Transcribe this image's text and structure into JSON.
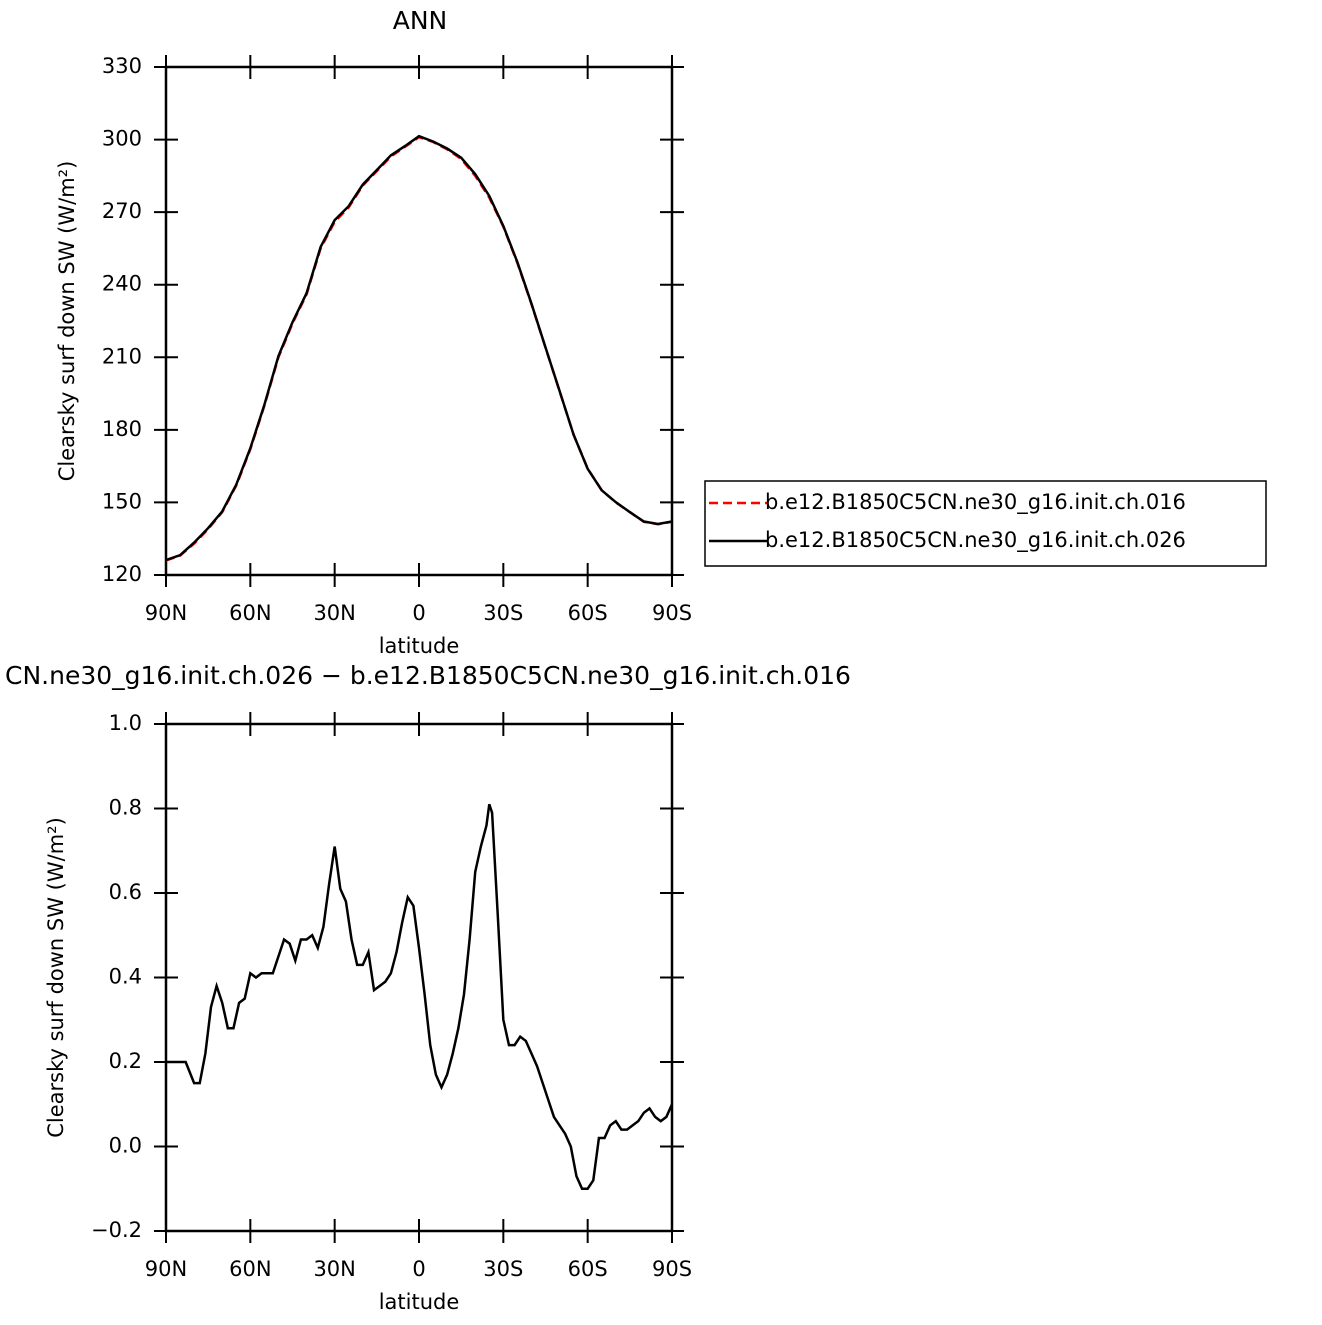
{
  "chart_data": [
    {
      "type": "line",
      "title": "ANN",
      "xlabel": "latitude",
      "ylabel": "Clearsky surf down SW (W/m²)",
      "x": [
        90,
        85,
        80,
        75,
        70,
        65,
        60,
        55,
        50,
        45,
        40,
        35,
        30,
        25,
        20,
        15,
        10,
        5,
        0,
        -5,
        -10,
        -15,
        -20,
        -25,
        -30,
        -35,
        -40,
        -45,
        -50,
        -55,
        -60,
        -65,
        -70,
        -75,
        -80,
        -85,
        -90
      ],
      "xlim": [
        90,
        -90
      ],
      "xticks": [
        {
          "value": 90,
          "label": "90N"
        },
        {
          "value": 60,
          "label": "60N"
        },
        {
          "value": 30,
          "label": "30N"
        },
        0,
        {
          "value": -30,
          "label": "30S"
        },
        {
          "value": -60,
          "label": "60S"
        },
        {
          "value": -90,
          "label": "90S"
        }
      ],
      "ylim": [
        120,
        330
      ],
      "yticks": [
        120,
        150,
        180,
        210,
        240,
        270,
        300,
        330
      ],
      "legend": "outside-right",
      "series": [
        {
          "name": "b.e12.B1850C5CN.ne30_g16.init.ch.016",
          "color": "#ff0000",
          "dash": "dashed",
          "values": [
            126,
            128,
            133,
            139,
            146,
            157,
            172,
            190,
            210,
            224,
            236,
            255,
            266,
            272,
            281,
            287,
            293,
            297,
            301,
            299,
            296,
            292,
            285,
            276,
            264,
            249,
            232,
            214,
            196,
            178,
            164,
            155,
            150,
            146,
            142,
            141,
            142
          ]
        },
        {
          "name": "b.e12.B1850C5CN.ne30_g16.init.ch.026",
          "color": "#000000",
          "dash": "solid",
          "values": [
            126.2,
            128.2,
            133.4,
            139.4,
            146.3,
            157.4,
            172.4,
            190.4,
            210.5,
            224.5,
            236.5,
            255.6,
            266.7,
            272.5,
            281.4,
            287.4,
            293.5,
            297.3,
            301.4,
            299.2,
            296.3,
            292.5,
            285.7,
            276.7,
            264.3,
            249.3,
            232.2,
            214.1,
            196.1,
            178.0,
            163.9,
            155.0,
            150.1,
            146.0,
            142.1,
            141.1,
            142.1
          ]
        }
      ]
    },
    {
      "type": "line",
      "title": "CN.ne30_g16.init.ch.026 − b.e12.B1850C5CN.ne30_g16.init.ch.016",
      "xlabel": "latitude",
      "ylabel": "Clearsky surf down SW (W/m²)",
      "x": [
        90,
        87,
        85,
        83,
        80,
        78,
        76,
        74,
        72,
        70,
        68,
        66,
        64,
        62,
        60,
        58,
        56,
        54,
        52,
        50,
        48,
        46,
        44,
        42,
        40,
        38,
        36,
        34,
        32,
        30,
        28,
        26,
        24,
        22,
        20,
        18,
        16,
        14,
        12,
        10,
        8,
        6,
        4,
        2,
        0,
        -2,
        -4,
        -6,
        -8,
        -10,
        -12,
        -14,
        -16,
        -18,
        -20,
        -22,
        -24,
        -25,
        -26,
        -28,
        -30,
        -32,
        -34,
        -36,
        -38,
        -40,
        -42,
        -44,
        -46,
        -48,
        -50,
        -52,
        -54,
        -56,
        -58,
        -60,
        -62,
        -64,
        -66,
        -68,
        -70,
        -72,
        -74,
        -76,
        -78,
        -80,
        -82,
        -84,
        -86,
        -88,
        -90
      ],
      "xlim": [
        90,
        -90
      ],
      "xticks": [
        {
          "value": 90,
          "label": "90N"
        },
        {
          "value": 60,
          "label": "60N"
        },
        {
          "value": 30,
          "label": "30N"
        },
        0,
        {
          "value": -30,
          "label": "30S"
        },
        {
          "value": -60,
          "label": "60S"
        },
        {
          "value": -90,
          "label": "90S"
        }
      ],
      "ylim": [
        -0.2,
        1.0
      ],
      "yticks": [
        {
          "value": -0.2,
          "label": "−0.2"
        },
        {
          "value": 0,
          "label": "0.0"
        },
        0.2,
        0.4,
        0.6,
        0.8,
        {
          "value": 1.0,
          "label": "1.0"
        }
      ],
      "series": [
        {
          "color": "#000000",
          "dash": "solid",
          "values": [
            0.2,
            0.2,
            0.2,
            0.2,
            0.15,
            0.15,
            0.22,
            0.33,
            0.38,
            0.34,
            0.28,
            0.28,
            0.34,
            0.35,
            0.41,
            0.4,
            0.41,
            0.41,
            0.41,
            0.45,
            0.49,
            0.48,
            0.44,
            0.49,
            0.49,
            0.5,
            0.47,
            0.52,
            0.62,
            0.71,
            0.61,
            0.58,
            0.49,
            0.43,
            0.43,
            0.46,
            0.37,
            0.38,
            0.39,
            0.41,
            0.46,
            0.53,
            0.59,
            0.57,
            0.47,
            0.36,
            0.24,
            0.17,
            0.14,
            0.17,
            0.22,
            0.28,
            0.36,
            0.49,
            0.65,
            0.71,
            0.76,
            0.81,
            0.79,
            0.55,
            0.3,
            0.24,
            0.24,
            0.26,
            0.25,
            0.22,
            0.19,
            0.15,
            0.11,
            0.07,
            0.05,
            0.03,
            0.0,
            -0.07,
            -0.1,
            -0.1,
            -0.08,
            0.02,
            0.02,
            0.05,
            0.06,
            0.04,
            0.04,
            0.05,
            0.06,
            0.08,
            0.09,
            0.07,
            0.06,
            0.07,
            0.1
          ]
        }
      ]
    }
  ]
}
